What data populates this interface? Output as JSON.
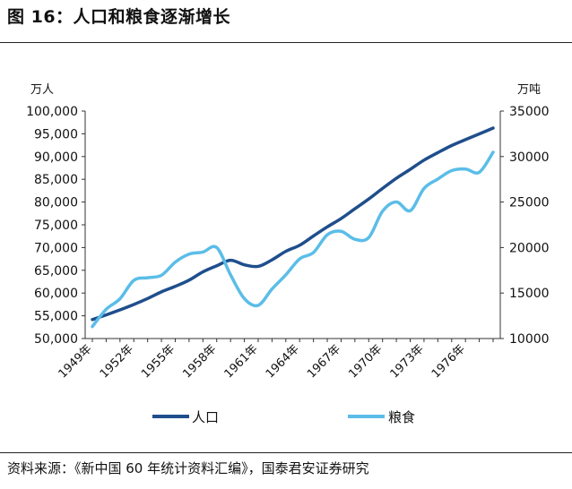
{
  "header": {
    "title": "图 16：人口和粮食逐渐增长"
  },
  "footer": {
    "source": "资料来源：《新中国 60 年统计资料汇编》，国泰君安证券研究"
  },
  "chart_data": {
    "type": "line",
    "title": "",
    "y_left_unit": "万人",
    "y_right_unit": "万吨",
    "x_labels": [
      "1949年",
      "1952年",
      "1955年",
      "1958年",
      "1961年",
      "1964年",
      "1967年",
      "1970年",
      "1973年",
      "1976年"
    ],
    "x": [
      1949,
      1950,
      1951,
      1952,
      1953,
      1954,
      1955,
      1956,
      1957,
      1958,
      1959,
      1960,
      1961,
      1962,
      1963,
      1964,
      1965,
      1966,
      1967,
      1968,
      1969,
      1970,
      1971,
      1972,
      1973,
      1974,
      1975,
      1976,
      1977,
      1978
    ],
    "y_left": {
      "min": 50000,
      "max": 100000,
      "ticks": [
        50000,
        55000,
        60000,
        65000,
        70000,
        75000,
        80000,
        85000,
        90000,
        95000,
        100000
      ],
      "tick_labels": [
        "50,000",
        "55,000",
        "60,000",
        "65,000",
        "70,000",
        "75,000",
        "80,000",
        "85,000",
        "90,000",
        "95,000",
        "100,000"
      ]
    },
    "y_right": {
      "min": 10000,
      "max": 35000,
      "ticks": [
        10000,
        15000,
        20000,
        25000,
        30000,
        35000
      ],
      "tick_labels": [
        "10000",
        "15000",
        "20000",
        "25000",
        "30000",
        "35000"
      ]
    },
    "series": [
      {
        "name": "人口",
        "axis": "left",
        "color": "#1f4e8c",
        "values": [
          54167,
          55196,
          56300,
          57482,
          58796,
          60266,
          61465,
          62828,
          64653,
          65994,
          67207,
          66207,
          65859,
          67295,
          69172,
          70499,
          72538,
          74542,
          76368,
          78534,
          80671,
          82992,
          85229,
          87177,
          89211,
          90859,
          92420,
          93717,
          94974,
          96259
        ]
      },
      {
        "name": "粮食",
        "axis": "right",
        "color": "#5bbde8",
        "values": [
          11318,
          13213,
          14369,
          16392,
          16683,
          16952,
          18394,
          19275,
          19505,
          20000,
          17000,
          14385,
          13650,
          15441,
          17000,
          18750,
          19453,
          21400,
          21782,
          20906,
          21097,
          23996,
          25014,
          24048,
          26494,
          27527,
          28452,
          28631,
          28273,
          30477
        ]
      }
    ],
    "legend_position": "bottom",
    "grid": false
  }
}
